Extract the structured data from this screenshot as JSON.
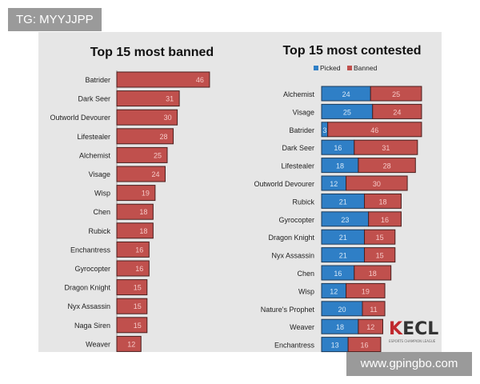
{
  "watermarks": {
    "tg": "TG: MYYJJPP",
    "site": "www.gpingbo.com",
    "logo": "ECL",
    "logo_sub": "ESPORTS CHAMPION LEAGUE"
  },
  "colors": {
    "picked": "#2f7fc6",
    "banned": "#c0504d",
    "background": "#e6e6e6"
  },
  "chart_data": [
    {
      "type": "bar",
      "orientation": "horizontal",
      "title": "Top 15 most banned",
      "categories": [
        "Batrider",
        "Dark Seer",
        "Outworld Devourer",
        "Lifestealer",
        "Alchemist",
        "Visage",
        "Wisp",
        "Chen",
        "Rubick",
        "Enchantress",
        "Gyrocopter",
        "Dragon Knight",
        "Nyx Assassin",
        "Naga Siren",
        "Weaver"
      ],
      "values": [
        46,
        31,
        30,
        28,
        25,
        24,
        19,
        18,
        18,
        16,
        16,
        15,
        15,
        15,
        12
      ]
    },
    {
      "type": "bar",
      "orientation": "horizontal",
      "stacked": true,
      "title": "Top 15 most contested",
      "legend": "top",
      "categories": [
        "Alchemist",
        "Visage",
        "Batrider",
        "Dark Seer",
        "Lifestealer",
        "Outworld Devourer",
        "Rubick",
        "Gyrocopter",
        "Dragon Knight",
        "Nyx Assassin",
        "Chen",
        "Wisp",
        "Nature's Prophet",
        "Weaver",
        "Enchantress"
      ],
      "series": [
        {
          "name": "Picked",
          "values": [
            24,
            25,
            3,
            16,
            18,
            12,
            21,
            23,
            21,
            21,
            16,
            12,
            20,
            18,
            13
          ]
        },
        {
          "name": "Banned",
          "values": [
            25,
            24,
            46,
            31,
            28,
            30,
            18,
            16,
            15,
            15,
            18,
            19,
            11,
            12,
            16
          ]
        }
      ]
    }
  ]
}
